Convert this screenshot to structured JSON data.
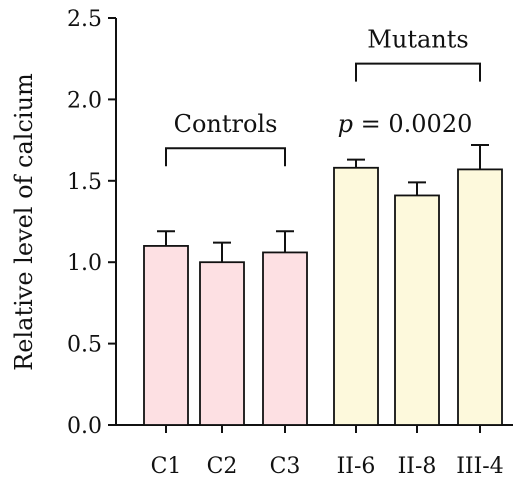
{
  "chart_data": {
    "type": "bar",
    "ylabel": "Relative level of calcium",
    "ylim": [
      0,
      2.5
    ],
    "yticks": [
      "0.0",
      "0.5",
      "1.0",
      "1.5",
      "2.0",
      "2.5"
    ],
    "categories": [
      "C1",
      "C2",
      "C3",
      "II-6",
      "II-8",
      "III-4"
    ],
    "values": [
      1.1,
      1.0,
      1.06,
      1.58,
      1.41,
      1.57
    ],
    "errors": [
      0.09,
      0.12,
      0.13,
      0.05,
      0.08,
      0.15
    ],
    "colors": {
      "controls": "#fde0e3",
      "mutants": "#fdf9dc",
      "stroke": "#111111"
    },
    "groups": [
      {
        "label": "Controls",
        "start": 0,
        "end": 2,
        "bracket_y": 1.7
      },
      {
        "label": "Mutants",
        "start": 3,
        "end": 5,
        "bracket_y": 2.22
      }
    ],
    "annotations": {
      "p_symbol": "p",
      "p_value": " = 0.0020"
    }
  }
}
